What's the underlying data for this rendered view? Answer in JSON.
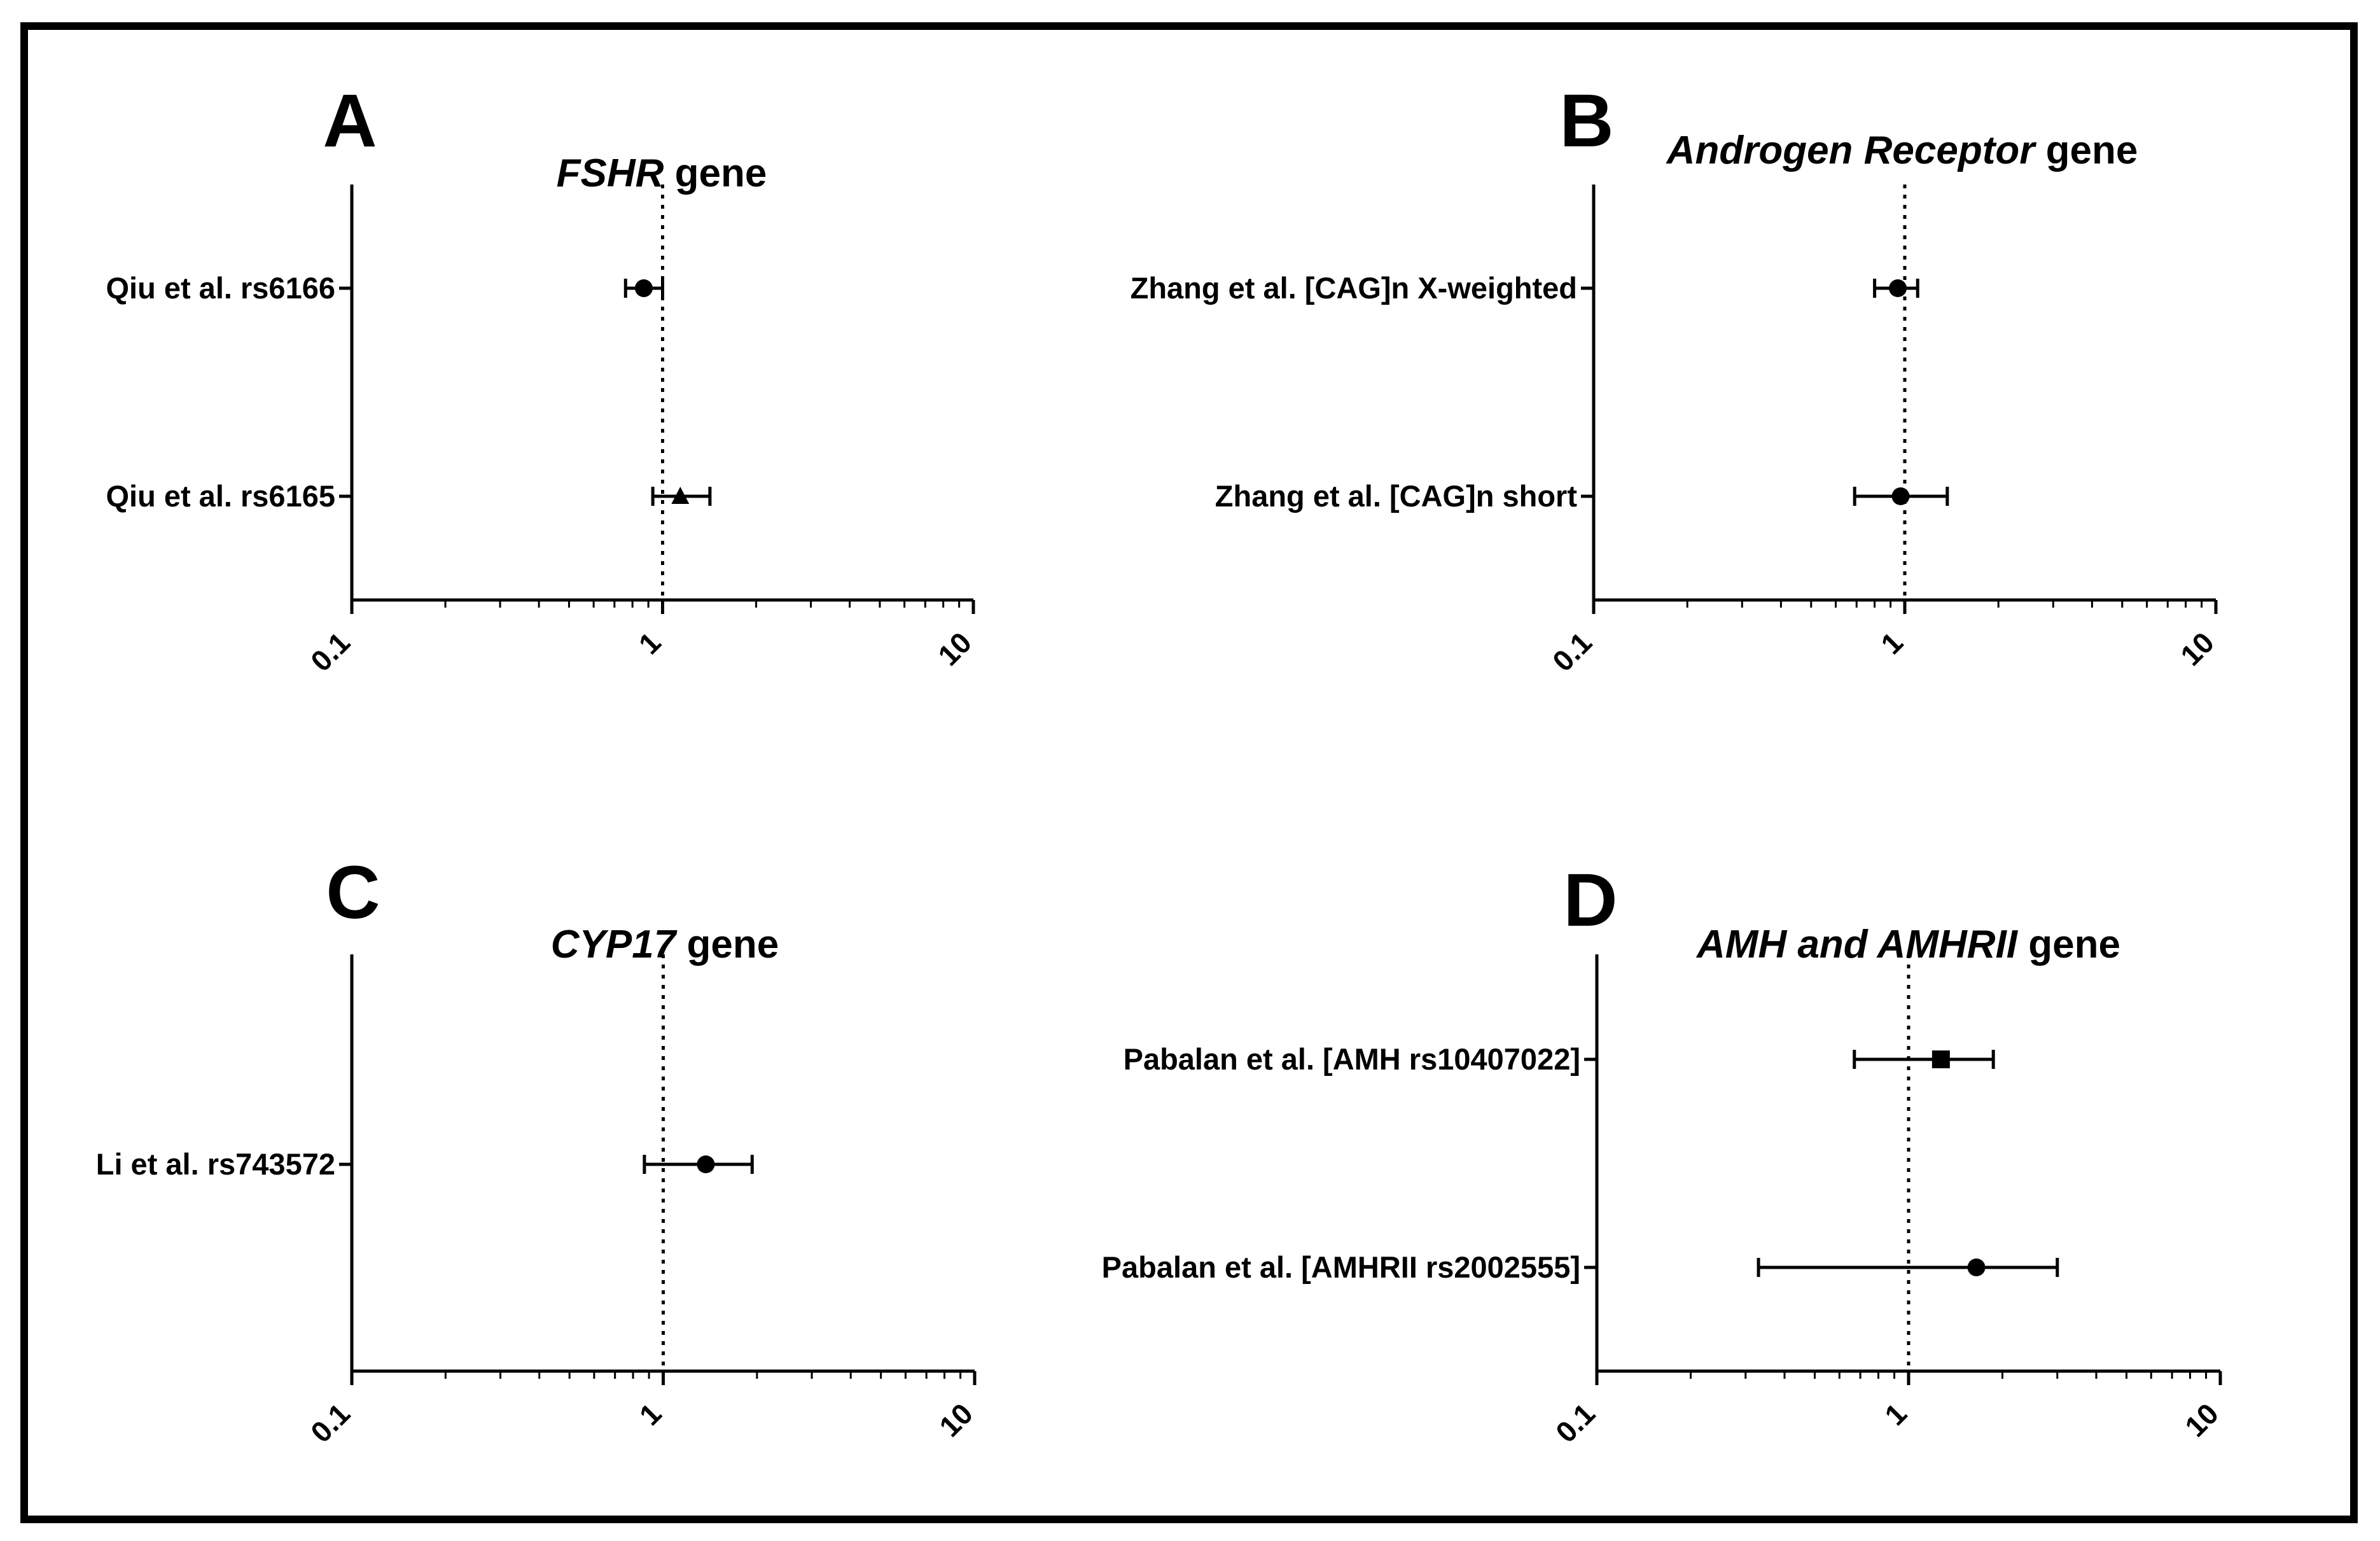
{
  "figure": {
    "frame_color": "#000000",
    "background": "#ffffff"
  },
  "chart_data": [
    {
      "type": "forest",
      "panel": "A",
      "title": {
        "italic": "FSHR",
        "rest": " gene"
      },
      "xscale": "log",
      "xlim": [
        0.1,
        10
      ],
      "xticks": [
        "0.1",
        "1",
        "10"
      ],
      "reference_line": 1,
      "rows": [
        {
          "label": "Qiu et al. rs6166",
          "estimate": 0.87,
          "ci": [
            0.76,
            1.0
          ],
          "marker": "circle"
        },
        {
          "label": "Qiu et al. rs6165",
          "estimate": 1.14,
          "ci": [
            0.93,
            1.42
          ],
          "marker": "triangle"
        }
      ]
    },
    {
      "type": "forest",
      "panel": "B",
      "title": {
        "italic": "Androgen Receptor",
        "rest": " gene"
      },
      "xscale": "log",
      "xlim": [
        0.1,
        10
      ],
      "xticks": [
        "0.1",
        "1",
        "10"
      ],
      "reference_line": 1,
      "rows": [
        {
          "label": "Zhang et al. [CAG]n X-weighted",
          "estimate": 0.95,
          "ci": [
            0.8,
            1.1
          ],
          "marker": "circle"
        },
        {
          "label": "Zhang et al. [CAG]n short",
          "estimate": 0.97,
          "ci": [
            0.69,
            1.37
          ],
          "marker": "circle"
        }
      ]
    },
    {
      "type": "forest",
      "panel": "C",
      "title": {
        "italic": "CYP17",
        "rest": " gene"
      },
      "xscale": "log",
      "xlim": [
        0.1,
        10
      ],
      "xticks": [
        "0.1",
        "1",
        "10"
      ],
      "reference_line": 1,
      "rows": [
        {
          "label": "Li et al. rs743572",
          "estimate": 1.37,
          "ci": [
            0.87,
            1.93
          ],
          "marker": "circle"
        }
      ]
    },
    {
      "type": "forest",
      "panel": "D",
      "title": {
        "italic": "AMH and AMHRII",
        "rest": " gene"
      },
      "xscale": "log",
      "xlim": [
        0.1,
        10
      ],
      "xticks": [
        "0.1",
        "1",
        "10"
      ],
      "reference_line": 1,
      "rows": [
        {
          "label": "Pabalan et al. [AMH rs10407022]",
          "estimate": 1.27,
          "ci": [
            0.67,
            1.87
          ],
          "marker": "square"
        },
        {
          "label": "Pabalan et al. [AMHRII rs2002555]",
          "estimate": 1.65,
          "ci": [
            0.33,
            3.0
          ],
          "marker": "circle"
        }
      ]
    }
  ]
}
